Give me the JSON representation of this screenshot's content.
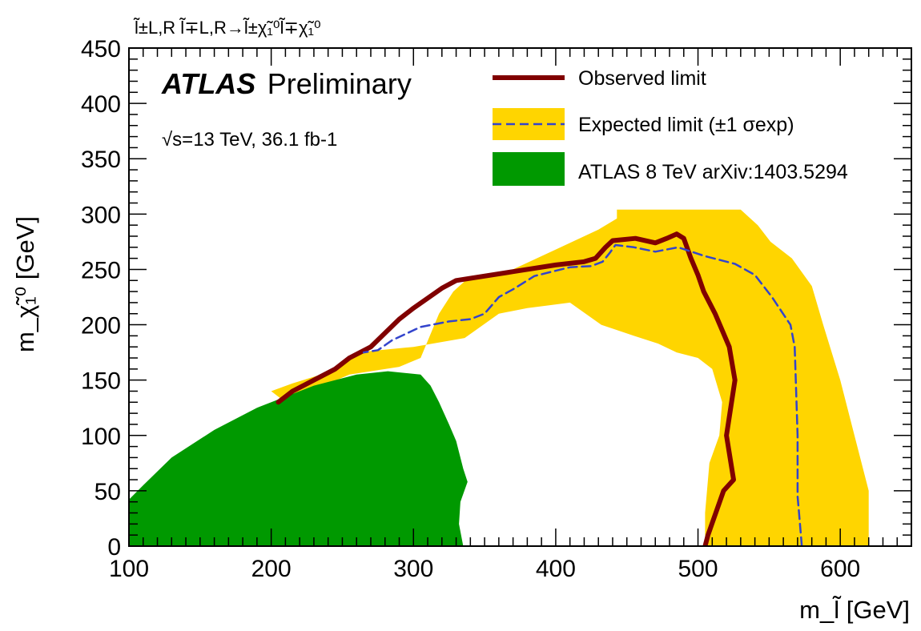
{
  "chart_data": {
    "type": "line",
    "process": "l̃±L,R l̃∓L,R→l̃±χ̃₁⁰l̃∓χ̃₁⁰",
    "experiment_label": "ATLAS",
    "status_label": "Preliminary",
    "energy_lumi": "√s=13 TeV, 36.1 fb-1",
    "xlabel": "m_l̃ [GeV]",
    "ylabel": "m_χ̃₁⁰ [GeV]",
    "xlim": [
      100,
      650
    ],
    "ylim": [
      0,
      450
    ],
    "x_ticks": [
      "100",
      "200",
      "300",
      "400",
      "500",
      "600"
    ],
    "y_ticks": [
      "0",
      "50",
      "100",
      "150",
      "200",
      "250",
      "300",
      "350",
      "400",
      "450"
    ],
    "legend_position": "top-right",
    "colors": {
      "observed": "#800000",
      "expected_band": "#FFD500",
      "expected_line": "#3344CC",
      "atlas8": "#009900"
    },
    "legend": {
      "observed": "Observed limit",
      "expected": "Expected limit (±1 σexp)",
      "atlas8": "ATLAS 8 TeV arXiv:1403.5294"
    },
    "series": [
      {
        "name": "Observed limit",
        "kind": "line",
        "points": [
          [
            505,
            0
          ],
          [
            507,
            10
          ],
          [
            518,
            50
          ],
          [
            525,
            60
          ],
          [
            520,
            100
          ],
          [
            526,
            150
          ],
          [
            522,
            180
          ],
          [
            512,
            210
          ],
          [
            504,
            230
          ],
          [
            500,
            245
          ],
          [
            495,
            260
          ],
          [
            490,
            278
          ],
          [
            485,
            282
          ],
          [
            478,
            278
          ],
          [
            470,
            274
          ],
          [
            456,
            278
          ],
          [
            440,
            276
          ],
          [
            435,
            270
          ],
          [
            428,
            260
          ],
          [
            420,
            257
          ],
          [
            400,
            254
          ],
          [
            370,
            248
          ],
          [
            330,
            240
          ],
          [
            320,
            233
          ],
          [
            300,
            215
          ],
          [
            290,
            205
          ],
          [
            270,
            180
          ],
          [
            255,
            170
          ],
          [
            245,
            160
          ],
          [
            230,
            150
          ],
          [
            215,
            140
          ],
          [
            205,
            130
          ]
        ]
      },
      {
        "name": "Expected limit",
        "kind": "line",
        "points": [
          [
            573,
            0
          ],
          [
            571,
            30
          ],
          [
            570,
            45
          ],
          [
            570,
            100
          ],
          [
            569,
            140
          ],
          [
            568,
            180
          ],
          [
            565,
            200
          ],
          [
            552,
            225
          ],
          [
            540,
            245
          ],
          [
            526,
            255
          ],
          [
            505,
            262
          ],
          [
            486,
            270
          ],
          [
            470,
            266
          ],
          [
            455,
            270
          ],
          [
            442,
            272
          ],
          [
            438,
            265
          ],
          [
            433,
            257
          ],
          [
            425,
            253
          ],
          [
            410,
            252
          ],
          [
            385,
            244
          ],
          [
            370,
            232
          ],
          [
            360,
            225
          ],
          [
            350,
            210
          ],
          [
            340,
            205
          ],
          [
            325,
            203
          ],
          [
            305,
            198
          ],
          [
            285,
            186
          ],
          [
            275,
            177
          ],
          [
            265,
            175
          ]
        ]
      },
      {
        "name": "Expected limit ±1σ band",
        "kind": "band",
        "points": [
          [
            505,
            0
          ],
          [
            620,
            0
          ],
          [
            620,
            50
          ],
          [
            610,
            100
          ],
          [
            600,
            150
          ],
          [
            588,
            200
          ],
          [
            580,
            235
          ],
          [
            566,
            260
          ],
          [
            551,
            275
          ],
          [
            542,
            290
          ],
          [
            530,
            304
          ],
          [
            443,
            304
          ],
          [
            443,
            296
          ],
          [
            430,
            286
          ],
          [
            400,
            268
          ],
          [
            370,
            250
          ],
          [
            340,
            244
          ],
          [
            328,
            230
          ],
          [
            318,
            210
          ],
          [
            305,
            170
          ],
          [
            290,
            162
          ],
          [
            255,
            155
          ],
          [
            210,
            130
          ],
          [
            200,
            140
          ],
          [
            215,
            147
          ],
          [
            240,
            157
          ],
          [
            260,
            175
          ],
          [
            300,
            180
          ],
          [
            336,
            188
          ],
          [
            360,
            210
          ],
          [
            380,
            215
          ],
          [
            410,
            220
          ],
          [
            432,
            200
          ],
          [
            455,
            190
          ],
          [
            472,
            183
          ],
          [
            485,
            175
          ],
          [
            500,
            170
          ],
          [
            510,
            160
          ],
          [
            517,
            130
          ],
          [
            515,
            100
          ],
          [
            508,
            75
          ],
          [
            505,
            30
          ]
        ]
      },
      {
        "name": "ATLAS 8 TeV arXiv:1403.5294",
        "kind": "fill",
        "points": [
          [
            100,
            0
          ],
          [
            335,
            0
          ],
          [
            332,
            20
          ],
          [
            333,
            40
          ],
          [
            338,
            58
          ],
          [
            335,
            70
          ],
          [
            330,
            95
          ],
          [
            325,
            110
          ],
          [
            318,
            130
          ],
          [
            312,
            145
          ],
          [
            305,
            155
          ],
          [
            282,
            158
          ],
          [
            260,
            155
          ],
          [
            230,
            145
          ],
          [
            210,
            135
          ],
          [
            190,
            125
          ],
          [
            160,
            105
          ],
          [
            130,
            80
          ],
          [
            110,
            55
          ],
          [
            100,
            42
          ]
        ]
      }
    ]
  }
}
